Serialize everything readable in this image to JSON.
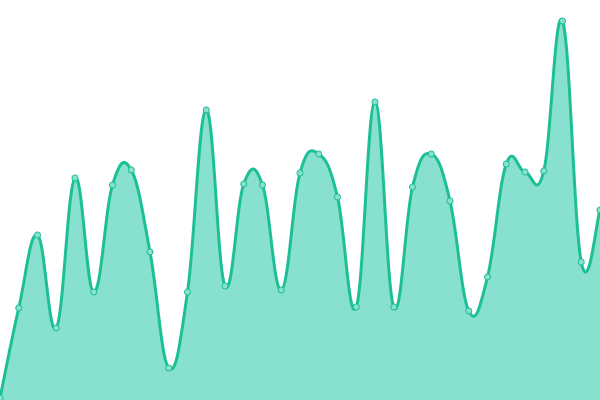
{
  "chart_data": {
    "type": "area",
    "title": "",
    "xlabel": "",
    "ylabel": "",
    "x": [
      0,
      1,
      2,
      3,
      4,
      5,
      6,
      7,
      8,
      9,
      10,
      11,
      12,
      13,
      14,
      15,
      16,
      17,
      18,
      19,
      20,
      21,
      22,
      23,
      24,
      25,
      26,
      27,
      28,
      29,
      30,
      31,
      32
    ],
    "values": [
      2,
      92,
      165,
      72,
      222,
      108,
      215,
      230,
      148,
      32,
      108,
      290,
      114,
      216,
      215,
      110,
      227,
      246,
      203,
      93,
      298,
      93,
      213,
      246,
      199,
      89,
      123,
      236,
      228,
      229,
      379,
      138,
      190
    ],
    "ylim": [
      0,
      400
    ],
    "grid": false,
    "smooth": true,
    "markers": true,
    "colors": {
      "line": "#1dbf95",
      "fill": "#88e0cf",
      "marker_fill": "#88e0cf",
      "background": "#ffffff"
    }
  }
}
